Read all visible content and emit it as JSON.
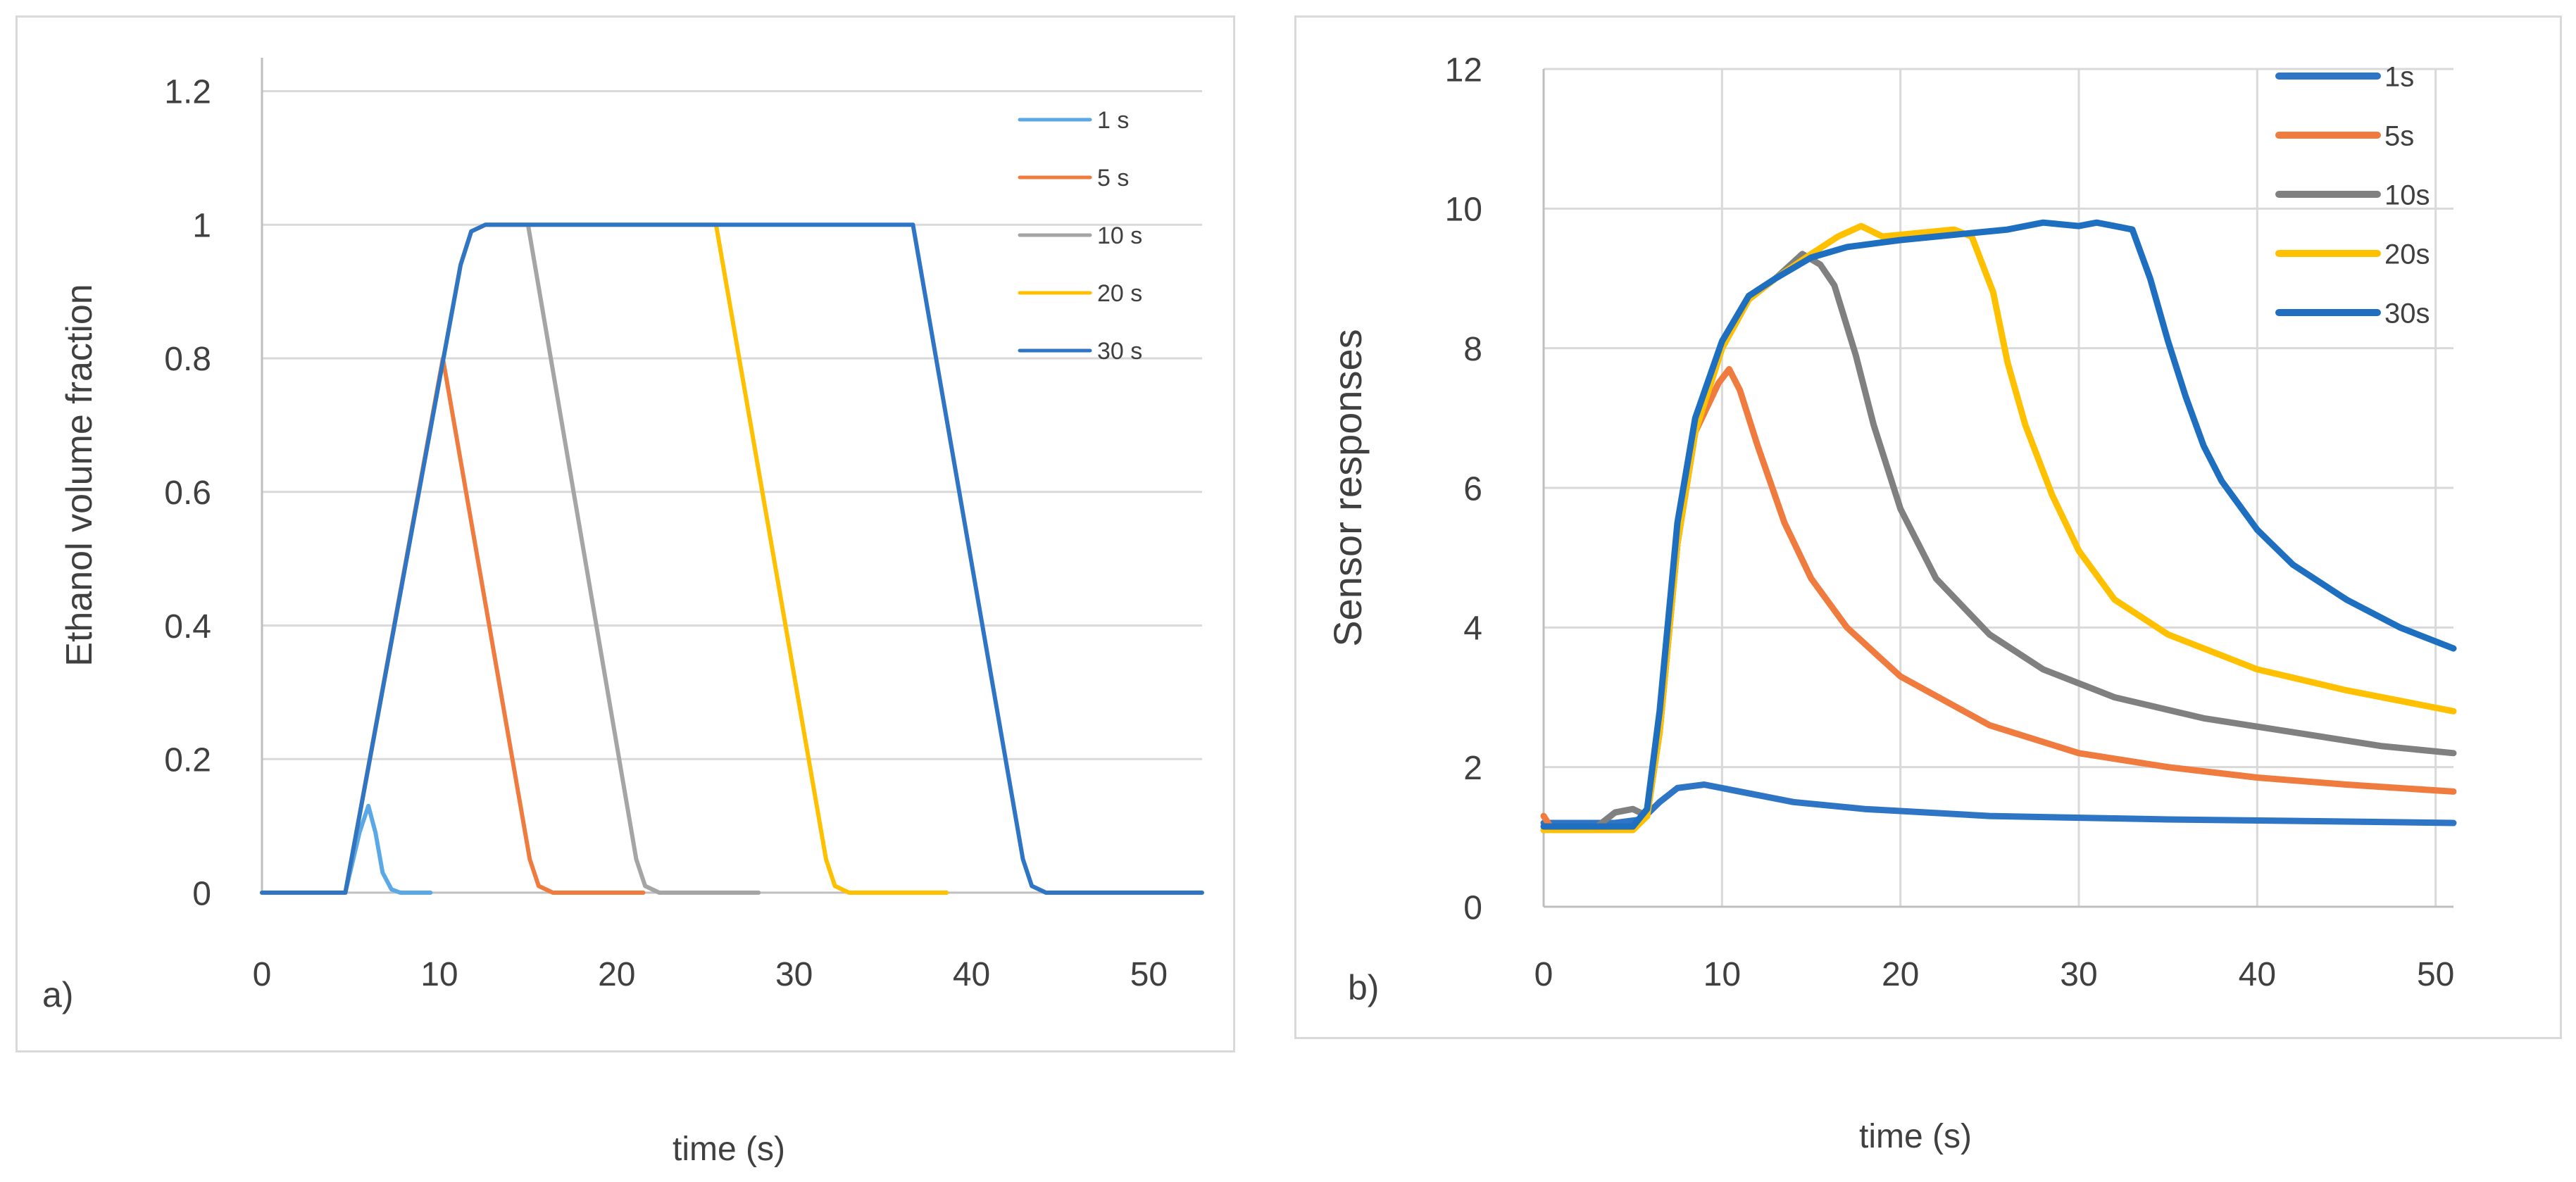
{
  "figure": {
    "colors": {
      "grid": "#d9d9d9",
      "axis": "#bfbfbf",
      "text": "#404040",
      "frame": "#d9d9d9"
    }
  },
  "chart_data": [
    {
      "type": "line",
      "panel_label": "a)",
      "title": "",
      "xlabel": "time (s)",
      "ylabel": "Ethanol volume fraction",
      "xlim": [
        0,
        53
      ],
      "ylim": [
        0,
        1.25
      ],
      "x_tick_labels": [
        "0",
        "10",
        "20",
        "30",
        "40",
        "50"
      ],
      "x_tick_values": [
        0,
        10,
        20,
        30,
        40,
        50
      ],
      "y_tick_labels": [
        "0",
        "0.2",
        "0.4",
        "0.6",
        "0.8",
        "1",
        "1.2"
      ],
      "y_tick_values": [
        0,
        0.2,
        0.4,
        0.6,
        0.8,
        1.0,
        1.2
      ],
      "grid": "horizontal",
      "legend": "top-right",
      "series": [
        {
          "name": "1 s",
          "color": "#5aa9e6",
          "points": [
            [
              0,
              0
            ],
            [
              4.7,
              0
            ],
            [
              5.5,
              0.09
            ],
            [
              6.0,
              0.13
            ],
            [
              6.4,
              0.09
            ],
            [
              6.8,
              0.03
            ],
            [
              7.3,
              0.005
            ],
            [
              7.8,
              0
            ],
            [
              9.5,
              0
            ]
          ]
        },
        {
          "name": "5 s",
          "color": "#f07b3f",
          "points": [
            [
              0,
              0
            ],
            [
              4.7,
              0
            ],
            [
              10.2,
              0.8
            ],
            [
              15.1,
              0.05
            ],
            [
              15.6,
              0.01
            ],
            [
              16.4,
              0
            ],
            [
              21.5,
              0
            ]
          ]
        },
        {
          "name": "10 s",
          "color": "#a5a5a5",
          "points": [
            [
              0,
              0
            ],
            [
              4.7,
              0
            ],
            [
              11.2,
              0.94
            ],
            [
              11.8,
              0.99
            ],
            [
              12.6,
              1.0
            ],
            [
              15.0,
              1.0
            ],
            [
              21.1,
              0.05
            ],
            [
              21.6,
              0.01
            ],
            [
              22.4,
              0
            ],
            [
              28,
              0
            ]
          ]
        },
        {
          "name": "20 s",
          "color": "#ffc000",
          "points": [
            [
              0,
              0
            ],
            [
              4.7,
              0
            ],
            [
              11.2,
              0.94
            ],
            [
              11.8,
              0.99
            ],
            [
              12.6,
              1.0
            ],
            [
              25.6,
              1.0
            ],
            [
              31.8,
              0.05
            ],
            [
              32.3,
              0.01
            ],
            [
              33.1,
              0
            ],
            [
              38.6,
              0
            ]
          ]
        },
        {
          "name": "30 s",
          "color": "#2e75c6",
          "points": [
            [
              0,
              0
            ],
            [
              4.7,
              0
            ],
            [
              11.2,
              0.94
            ],
            [
              11.8,
              0.99
            ],
            [
              12.6,
              1.0
            ],
            [
              36.7,
              1.0
            ],
            [
              42.9,
              0.05
            ],
            [
              43.4,
              0.01
            ],
            [
              44.2,
              0
            ],
            [
              53,
              0
            ]
          ]
        }
      ]
    },
    {
      "type": "line",
      "panel_label": "b)",
      "title": "",
      "xlabel": "time (s)",
      "ylabel": "Sensor responses",
      "xlim": [
        0,
        51
      ],
      "ylim": [
        0,
        12
      ],
      "x_tick_labels": [
        "0",
        "10",
        "20",
        "30",
        "40",
        "50"
      ],
      "x_tick_values": [
        0,
        10,
        20,
        30,
        40,
        50
      ],
      "y_tick_labels": [
        "0",
        "2",
        "4",
        "6",
        "8",
        "10",
        "12"
      ],
      "y_tick_values": [
        0,
        2,
        4,
        6,
        8,
        10,
        12
      ],
      "grid": "both",
      "legend": "top-right",
      "series": [
        {
          "name": "1s",
          "color": "#2e75c6",
          "points": [
            [
              0,
              1.2
            ],
            [
              4,
              1.2
            ],
            [
              5.5,
              1.25
            ],
            [
              6.5,
              1.5
            ],
            [
              7.5,
              1.7
            ],
            [
              9,
              1.75
            ],
            [
              11,
              1.65
            ],
            [
              14,
              1.5
            ],
            [
              18,
              1.4
            ],
            [
              25,
              1.3
            ],
            [
              35,
              1.25
            ],
            [
              45,
              1.22
            ],
            [
              51,
              1.2
            ]
          ]
        },
        {
          "name": "5s",
          "color": "#f07b3f",
          "points": [
            [
              0,
              1.3
            ],
            [
              0.5,
              1.1
            ],
            [
              5,
              1.1
            ],
            [
              5.8,
              1.3
            ],
            [
              6.5,
              2.5
            ],
            [
              7.5,
              5.2
            ],
            [
              8.5,
              6.8
            ],
            [
              9.8,
              7.5
            ],
            [
              10.4,
              7.7
            ],
            [
              11,
              7.4
            ],
            [
              12,
              6.6
            ],
            [
              13.5,
              5.5
            ],
            [
              15,
              4.7
            ],
            [
              17,
              4.0
            ],
            [
              20,
              3.3
            ],
            [
              25,
              2.6
            ],
            [
              30,
              2.2
            ],
            [
              35,
              2.0
            ],
            [
              40,
              1.85
            ],
            [
              45,
              1.75
            ],
            [
              51,
              1.65
            ]
          ]
        },
        {
          "name": "10s",
          "color": "#808080",
          "points": [
            [
              0,
              1.1
            ],
            [
              3,
              1.15
            ],
            [
              4,
              1.35
            ],
            [
              5,
              1.4
            ],
            [
              5.8,
              1.3
            ],
            [
              6.5,
              2.5
            ],
            [
              7.5,
              5.2
            ],
            [
              8.5,
              6.8
            ],
            [
              10,
              8.0
            ],
            [
              11.5,
              8.7
            ],
            [
              13,
              9.0
            ],
            [
              14.5,
              9.35
            ],
            [
              15.5,
              9.2
            ],
            [
              16.3,
              8.9
            ],
            [
              17.5,
              7.9
            ],
            [
              18.5,
              6.9
            ],
            [
              20,
              5.7
            ],
            [
              22,
              4.7
            ],
            [
              25,
              3.9
            ],
            [
              28,
              3.4
            ],
            [
              32,
              3.0
            ],
            [
              37,
              2.7
            ],
            [
              42,
              2.5
            ],
            [
              47,
              2.3
            ],
            [
              51,
              2.2
            ]
          ]
        },
        {
          "name": "20s",
          "color": "#ffc000",
          "points": [
            [
              0,
              1.1
            ],
            [
              5,
              1.1
            ],
            [
              5.8,
              1.3
            ],
            [
              6.5,
              2.5
            ],
            [
              7.5,
              5.2
            ],
            [
              8.5,
              6.8
            ],
            [
              10,
              8.0
            ],
            [
              11.5,
              8.7
            ],
            [
              13,
              9.0
            ],
            [
              15,
              9.35
            ],
            [
              16.5,
              9.6
            ],
            [
              17.8,
              9.75
            ],
            [
              19,
              9.6
            ],
            [
              21,
              9.65
            ],
            [
              23,
              9.7
            ],
            [
              24,
              9.6
            ],
            [
              25.2,
              8.8
            ],
            [
              26,
              7.8
            ],
            [
              27,
              6.9
            ],
            [
              28.5,
              5.9
            ],
            [
              30,
              5.1
            ],
            [
              32,
              4.4
            ],
            [
              35,
              3.9
            ],
            [
              40,
              3.4
            ],
            [
              45,
              3.1
            ],
            [
              51,
              2.8
            ]
          ]
        },
        {
          "name": "30s",
          "color": "#1f6fc0",
          "points": [
            [
              0,
              1.15
            ],
            [
              5,
              1.15
            ],
            [
              5.8,
              1.4
            ],
            [
              6.5,
              2.8
            ],
            [
              7.5,
              5.5
            ],
            [
              8.5,
              7.0
            ],
            [
              10,
              8.1
            ],
            [
              11.5,
              8.75
            ],
            [
              13,
              9.0
            ],
            [
              15,
              9.3
            ],
            [
              17,
              9.45
            ],
            [
              20,
              9.55
            ],
            [
              22,
              9.6
            ],
            [
              24,
              9.65
            ],
            [
              26,
              9.7
            ],
            [
              28,
              9.8
            ],
            [
              30,
              9.75
            ],
            [
              31,
              9.8
            ],
            [
              32,
              9.75
            ],
            [
              33,
              9.7
            ],
            [
              34,
              9.0
            ],
            [
              35,
              8.1
            ],
            [
              36,
              7.3
            ],
            [
              37,
              6.6
            ],
            [
              38,
              6.1
            ],
            [
              40,
              5.4
            ],
            [
              42,
              4.9
            ],
            [
              45,
              4.4
            ],
            [
              48,
              4.0
            ],
            [
              51,
              3.7
            ]
          ]
        }
      ]
    }
  ]
}
